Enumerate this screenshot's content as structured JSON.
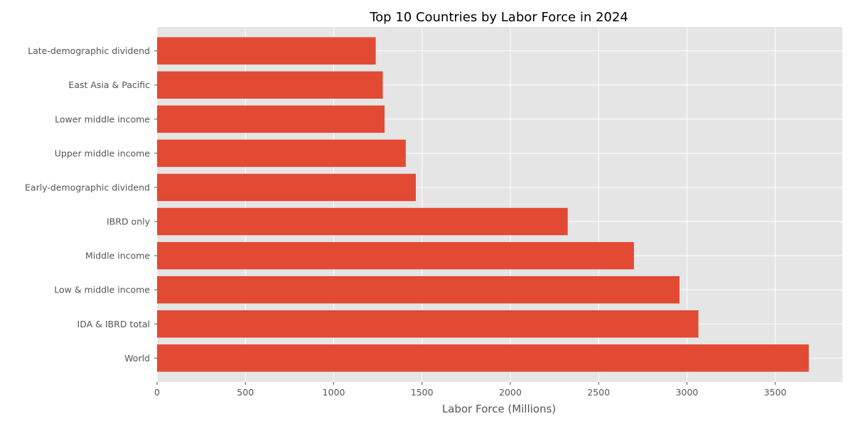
{
  "chart_data": {
    "type": "bar",
    "orientation": "horizontal",
    "title": "Top 10 Countries by Labor Force in 2024",
    "xlabel": "Labor Force (Millions)",
    "ylabel": "",
    "xlim": [
      0,
      3880
    ],
    "xticks": [
      0,
      500,
      1000,
      1500,
      2000,
      2500,
      3000,
      3500
    ],
    "grid": true,
    "bar_color": "#E24A33",
    "background_color": "#E5E5E5",
    "grid_color": "#FFFFFF",
    "categories": [
      "World",
      "IDA & IBRD total",
      "Low & middle income",
      "Middle income",
      "IBRD only",
      "Early-demographic dividend",
      "Upper middle income",
      "Lower middle income",
      "East Asia & Pacific",
      "Late-demographic dividend"
    ],
    "values": [
      3690,
      3065,
      2958,
      2700,
      2325,
      1465,
      1408,
      1288,
      1278,
      1238
    ]
  }
}
